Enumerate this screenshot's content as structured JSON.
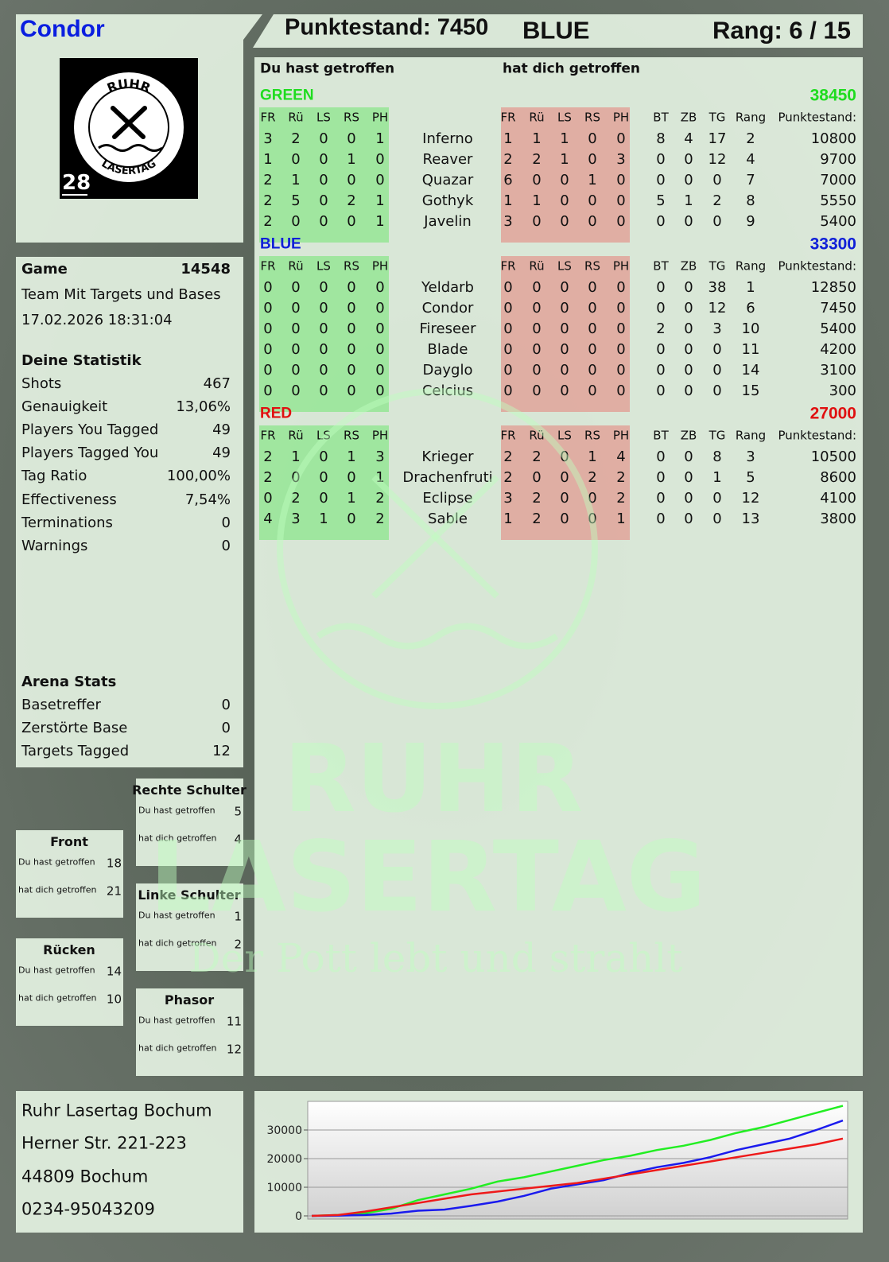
{
  "header": {
    "player": "Condor",
    "score_text": "Punktestand: 7450",
    "team": "BLUE",
    "rank_text": "Rang: 6 / 15"
  },
  "logo": {
    "top": "RUHR",
    "bottom": "LASERTAG",
    "number": "28"
  },
  "game": {
    "label": "Game",
    "id": 14548,
    "mode": "Team Mit Targets und Bases",
    "date": "17.02.2026 18:31:04"
  },
  "statistics": {
    "title": "Deine Statistik",
    "rows": [
      [
        "Shots",
        467
      ],
      [
        "Genauigkeit",
        "13,06%"
      ],
      [
        "Players You Tagged",
        49
      ],
      [
        "Players Tagged You",
        49
      ],
      [
        "Tag Ratio",
        "100,00%"
      ],
      [
        "Effectiveness",
        "7,54%"
      ],
      [
        "Terminations",
        0
      ],
      [
        "Warnings",
        0
      ]
    ]
  },
  "arena": {
    "title": "Arena Stats",
    "rows": [
      [
        "Basetreffer",
        0
      ],
      [
        "Zerstörte Base",
        0
      ],
      [
        "Targets Tagged",
        12
      ]
    ]
  },
  "hit_labels": [
    "Du hast getroffen",
    "hat dich getroffen"
  ],
  "zones": [
    {
      "title": "Rechte Schulter",
      "values": [
        5,
        4
      ]
    },
    {
      "title": "Front",
      "values": [
        18,
        21
      ]
    },
    {
      "title": "Linke Schulter",
      "values": [
        1,
        2
      ]
    },
    {
      "title": "Rücken",
      "values": [
        14,
        10
      ]
    },
    {
      "title": "Phasor",
      "values": [
        11,
        12
      ]
    }
  ],
  "scoreboard": {
    "hit_columns": [
      "FR",
      "Rü",
      "LS",
      "RS",
      "PH"
    ],
    "stat_columns": [
      "BT",
      "ZB",
      "TG",
      "Rang",
      "Punktestand:"
    ],
    "teams": [
      {
        "name": "GREEN",
        "color": "#1fdc1f",
        "score": 38450,
        "players": [
          {
            "name": "Inferno",
            "hit": [
              3,
              2,
              0,
              0,
              1
            ],
            "got": [
              1,
              1,
              1,
              0,
              0
            ],
            "stats": [
              8,
              4,
              17,
              2,
              10800
            ]
          },
          {
            "name": "Reaver",
            "hit": [
              1,
              0,
              0,
              1,
              0
            ],
            "got": [
              2,
              2,
              1,
              0,
              3
            ],
            "stats": [
              0,
              0,
              12,
              4,
              9700
            ]
          },
          {
            "name": "Quazar",
            "hit": [
              2,
              1,
              0,
              0,
              0
            ],
            "got": [
              6,
              0,
              0,
              1,
              0
            ],
            "stats": [
              0,
              0,
              0,
              7,
              7000
            ]
          },
          {
            "name": "Gothyk",
            "hit": [
              2,
              5,
              0,
              2,
              1
            ],
            "got": [
              1,
              1,
              0,
              0,
              0
            ],
            "stats": [
              5,
              1,
              2,
              8,
              5550
            ]
          },
          {
            "name": "Javelin",
            "hit": [
              2,
              0,
              0,
              0,
              1
            ],
            "got": [
              3,
              0,
              0,
              0,
              0
            ],
            "stats": [
              0,
              0,
              0,
              9,
              5400
            ]
          }
        ]
      },
      {
        "name": "BLUE",
        "color": "#1020d8",
        "score": 33300,
        "players": [
          {
            "name": "Yeldarb",
            "hit": [
              0,
              0,
              0,
              0,
              0
            ],
            "got": [
              0,
              0,
              0,
              0,
              0
            ],
            "stats": [
              0,
              0,
              38,
              1,
              12850
            ]
          },
          {
            "name": "Condor",
            "hit": [
              0,
              0,
              0,
              0,
              0
            ],
            "got": [
              0,
              0,
              0,
              0,
              0
            ],
            "stats": [
              0,
              0,
              12,
              6,
              7450
            ]
          },
          {
            "name": "Fireseer",
            "hit": [
              0,
              0,
              0,
              0,
              0
            ],
            "got": [
              0,
              0,
              0,
              0,
              0
            ],
            "stats": [
              2,
              0,
              3,
              10,
              5400
            ]
          },
          {
            "name": "Blade",
            "hit": [
              0,
              0,
              0,
              0,
              0
            ],
            "got": [
              0,
              0,
              0,
              0,
              0
            ],
            "stats": [
              0,
              0,
              0,
              11,
              4200
            ]
          },
          {
            "name": "Dayglo",
            "hit": [
              0,
              0,
              0,
              0,
              0
            ],
            "got": [
              0,
              0,
              0,
              0,
              0
            ],
            "stats": [
              0,
              0,
              0,
              14,
              3100
            ]
          },
          {
            "name": "Celcius",
            "hit": [
              0,
              0,
              0,
              0,
              0
            ],
            "got": [
              0,
              0,
              0,
              0,
              0
            ],
            "stats": [
              0,
              0,
              0,
              15,
              300
            ]
          }
        ]
      },
      {
        "name": "RED",
        "color": "#e01010",
        "score": 27000,
        "players": [
          {
            "name": "Krieger",
            "hit": [
              2,
              1,
              0,
              1,
              3
            ],
            "got": [
              2,
              2,
              0,
              1,
              4
            ],
            "stats": [
              0,
              0,
              8,
              3,
              10500
            ]
          },
          {
            "name": "Drachenfruti",
            "hit": [
              2,
              0,
              0,
              0,
              1
            ],
            "got": [
              2,
              0,
              0,
              2,
              2
            ],
            "stats": [
              0,
              0,
              1,
              5,
              8600
            ]
          },
          {
            "name": "Eclipse",
            "hit": [
              0,
              2,
              0,
              1,
              2
            ],
            "got": [
              3,
              2,
              0,
              0,
              2
            ],
            "stats": [
              0,
              0,
              0,
              12,
              4100
            ]
          },
          {
            "name": "Sable",
            "hit": [
              4,
              3,
              1,
              0,
              2
            ],
            "got": [
              1,
              2,
              0,
              0,
              1
            ],
            "stats": [
              0,
              0,
              0,
              13,
              3800
            ]
          }
        ]
      }
    ]
  },
  "address": [
    "Ruhr Lasertag Bochum",
    "Herner Str. 221-223",
    "44809 Bochum",
    "0234-95043209"
  ],
  "watermark": [
    "RUHR",
    "LASERTAG",
    "Der Pott lebt und strahlt"
  ],
  "chart_data": {
    "type": "line",
    "ylim": [
      0,
      40000
    ],
    "yticks": [
      0,
      10000,
      20000,
      30000
    ],
    "grid": true,
    "series": [
      {
        "color": "#22ee22",
        "values": [
          0,
          300,
          900,
          2500,
          5500,
          7500,
          9500,
          12000,
          13500,
          15500,
          17500,
          19500,
          21000,
          23000,
          24500,
          26500,
          29000,
          31000,
          33500,
          36000,
          38450
        ]
      },
      {
        "color": "#1a1aee",
        "values": [
          0,
          100,
          300,
          800,
          1800,
          2200,
          3500,
          5000,
          7000,
          9500,
          11000,
          12500,
          15000,
          17000,
          18500,
          20500,
          23000,
          25000,
          27000,
          30000,
          33300
        ]
      },
      {
        "color": "#ee1a1a",
        "values": [
          0,
          300,
          1500,
          3000,
          4500,
          6000,
          7500,
          8500,
          9500,
          10500,
          11500,
          13000,
          14500,
          16000,
          17500,
          19000,
          20500,
          22000,
          23500,
          25000,
          27000
        ]
      }
    ]
  }
}
